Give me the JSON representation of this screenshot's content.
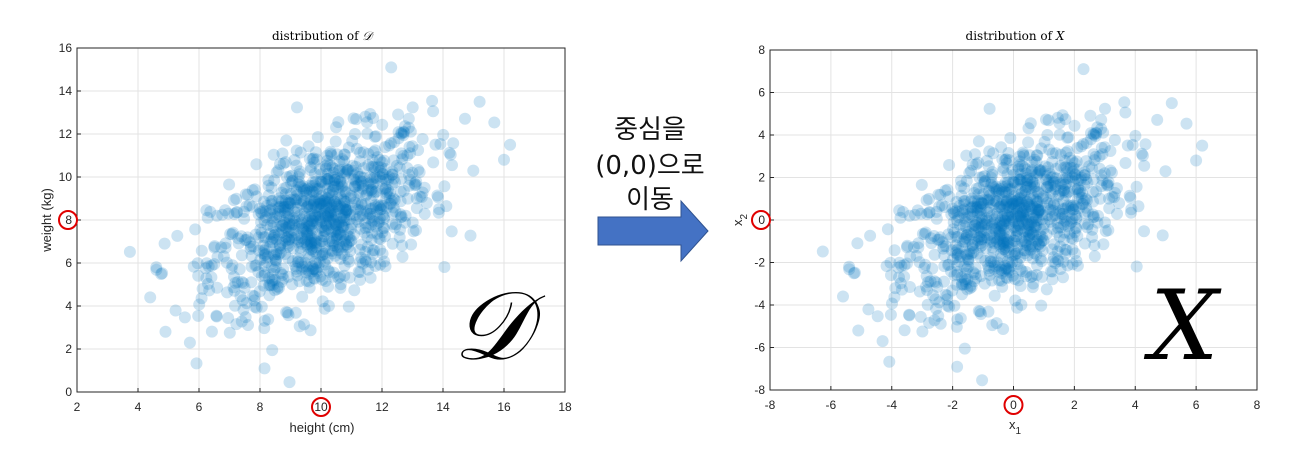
{
  "arrow_text": {
    "line1": "중심을",
    "line2": "(0,0)으로",
    "line3": "이동"
  },
  "colors": {
    "point": "#0072BD",
    "grid": "#e3e3e3",
    "axis": "#262626",
    "highlight": "#e00000",
    "arrow_fill": "#4472C4",
    "arrow_stroke": "#2F528F"
  },
  "chart_data": [
    {
      "type": "scatter",
      "title_prefix": "distribution of ",
      "title_symbol": "𝒟",
      "xlabel": "height (cm)",
      "ylabel": "weight (kg)",
      "xlim": [
        2,
        18
      ],
      "ylim": [
        0,
        16
      ],
      "xticks": [
        "2",
        "4",
        "6",
        "8",
        "10",
        "12",
        "14",
        "16",
        "18"
      ],
      "yticks": [
        "0",
        "2",
        "4",
        "6",
        "8",
        "10",
        "12",
        "14",
        "16"
      ],
      "highlight": {
        "x_tick": "10",
        "y_tick": "8"
      },
      "overlay_label": "𝒟",
      "grid": true,
      "n_points": 1000,
      "center": [
        10,
        8
      ],
      "std": [
        1.8,
        2.0
      ],
      "correlation": 0.5,
      "notable_points": [
        [
          12.3,
          15.1
        ],
        [
          16.2,
          11.5
        ],
        [
          16.0,
          10.8
        ],
        [
          15.2,
          13.5
        ],
        [
          8.4,
          1.95
        ],
        [
          4.4,
          4.4
        ],
        [
          4.6,
          5.8
        ],
        [
          5.7,
          2.3
        ],
        [
          4.9,
          2.8
        ]
      ]
    },
    {
      "type": "scatter",
      "title_prefix": "distribution of ",
      "title_symbol": "X",
      "xlabel": "x",
      "xlabel_sub": "1",
      "ylabel": "x",
      "ylabel_sub": "2",
      "xlim": [
        -8,
        8
      ],
      "ylim": [
        -8,
        8
      ],
      "xticks": [
        "-8",
        "-6",
        "-4",
        "-2",
        "0",
        "2",
        "4",
        "6",
        "8"
      ],
      "yticks": [
        "-8",
        "-6",
        "-4",
        "-2",
        "0",
        "2",
        "4",
        "6",
        "8"
      ],
      "highlight": {
        "x_tick": "0",
        "y_tick": "0"
      },
      "overlay_label": "X",
      "grid": true,
      "n_points": 1000,
      "center": [
        0,
        0
      ],
      "std": [
        1.8,
        2.0
      ],
      "correlation": 0.5,
      "notable_points": [
        [
          2.3,
          7.1
        ],
        [
          6.2,
          3.5
        ],
        [
          6.0,
          2.8
        ],
        [
          5.2,
          5.5
        ],
        [
          -1.6,
          -6.05
        ],
        [
          -5.6,
          -3.6
        ],
        [
          -5.4,
          -2.2
        ],
        [
          -4.3,
          -5.7
        ],
        [
          -5.1,
          -5.2
        ]
      ]
    }
  ]
}
